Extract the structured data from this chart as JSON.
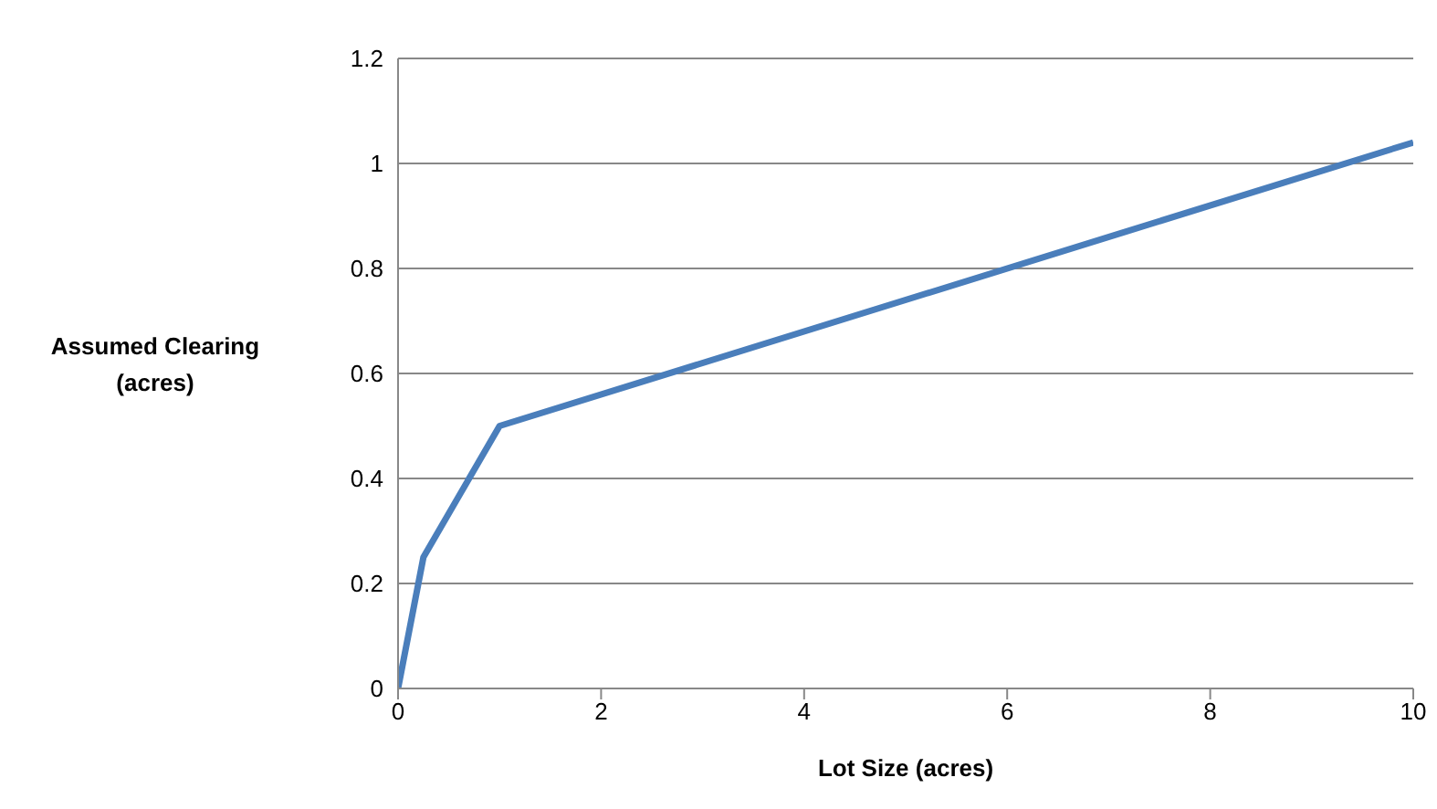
{
  "chart_data": {
    "type": "line",
    "xlabel": "Lot Size (acres)",
    "ylabel": "Assumed Clearing (acres)",
    "x": [
      0,
      0.25,
      1,
      10
    ],
    "series": [
      {
        "color": "#4a7ebb",
        "values": [
          0,
          0.25,
          0.5,
          1.04
        ]
      }
    ],
    "xlim": [
      0,
      10
    ],
    "xticks": [
      0,
      2,
      4,
      6,
      8,
      10
    ],
    "ylim": [
      0,
      1.2
    ],
    "yticks": [
      0,
      0.2,
      0.4,
      0.6,
      0.8,
      1,
      1.2
    ],
    "grid": "y",
    "legend": false,
    "marker": "none",
    "line_style": "solid"
  }
}
